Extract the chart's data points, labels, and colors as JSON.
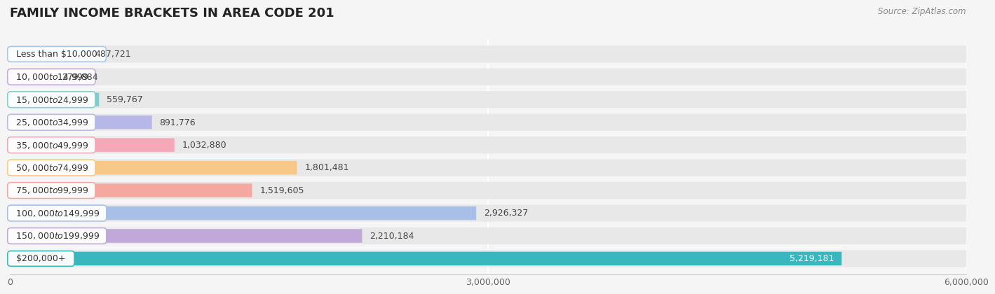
{
  "title": "FAMILY INCOME BRACKETS IN AREA CODE 201",
  "source": "Source: ZipAtlas.com",
  "categories": [
    "Less than $10,000",
    "$10,000 to $14,999",
    "$15,000 to $24,999",
    "$25,000 to $34,999",
    "$35,000 to $49,999",
    "$50,000 to $74,999",
    "$75,000 to $99,999",
    "$100,000 to $149,999",
    "$150,000 to $199,999",
    "$200,000+"
  ],
  "values": [
    487721,
    279884,
    559767,
    891776,
    1032880,
    1801481,
    1519605,
    2926327,
    2210184,
    5219181
  ],
  "bar_colors": [
    "#a8c8e8",
    "#c8a8d8",
    "#7ecece",
    "#b8b8e8",
    "#f4a8b8",
    "#f8c888",
    "#f4a8a0",
    "#a8c0e8",
    "#c0a8d8",
    "#39b6be"
  ],
  "label_values": [
    "487,721",
    "279,884",
    "559,767",
    "891,776",
    "1,032,880",
    "1,801,481",
    "1,519,605",
    "2,926,327",
    "2,210,184",
    "5,219,181"
  ],
  "value_label_colors": [
    "#444444",
    "#444444",
    "#444444",
    "#444444",
    "#444444",
    "#444444",
    "#444444",
    "#444444",
    "#444444",
    "#ffffff"
  ],
  "xlim": [
    0,
    6000000
  ],
  "xticks": [
    0,
    3000000,
    6000000
  ],
  "xtick_labels": [
    "0",
    "3,000,000",
    "6,000,000"
  ],
  "background_color": "#f5f5f5",
  "bar_bg_color": "#e8e8e8",
  "title_fontsize": 13,
  "label_fontsize": 9,
  "category_fontsize": 9
}
